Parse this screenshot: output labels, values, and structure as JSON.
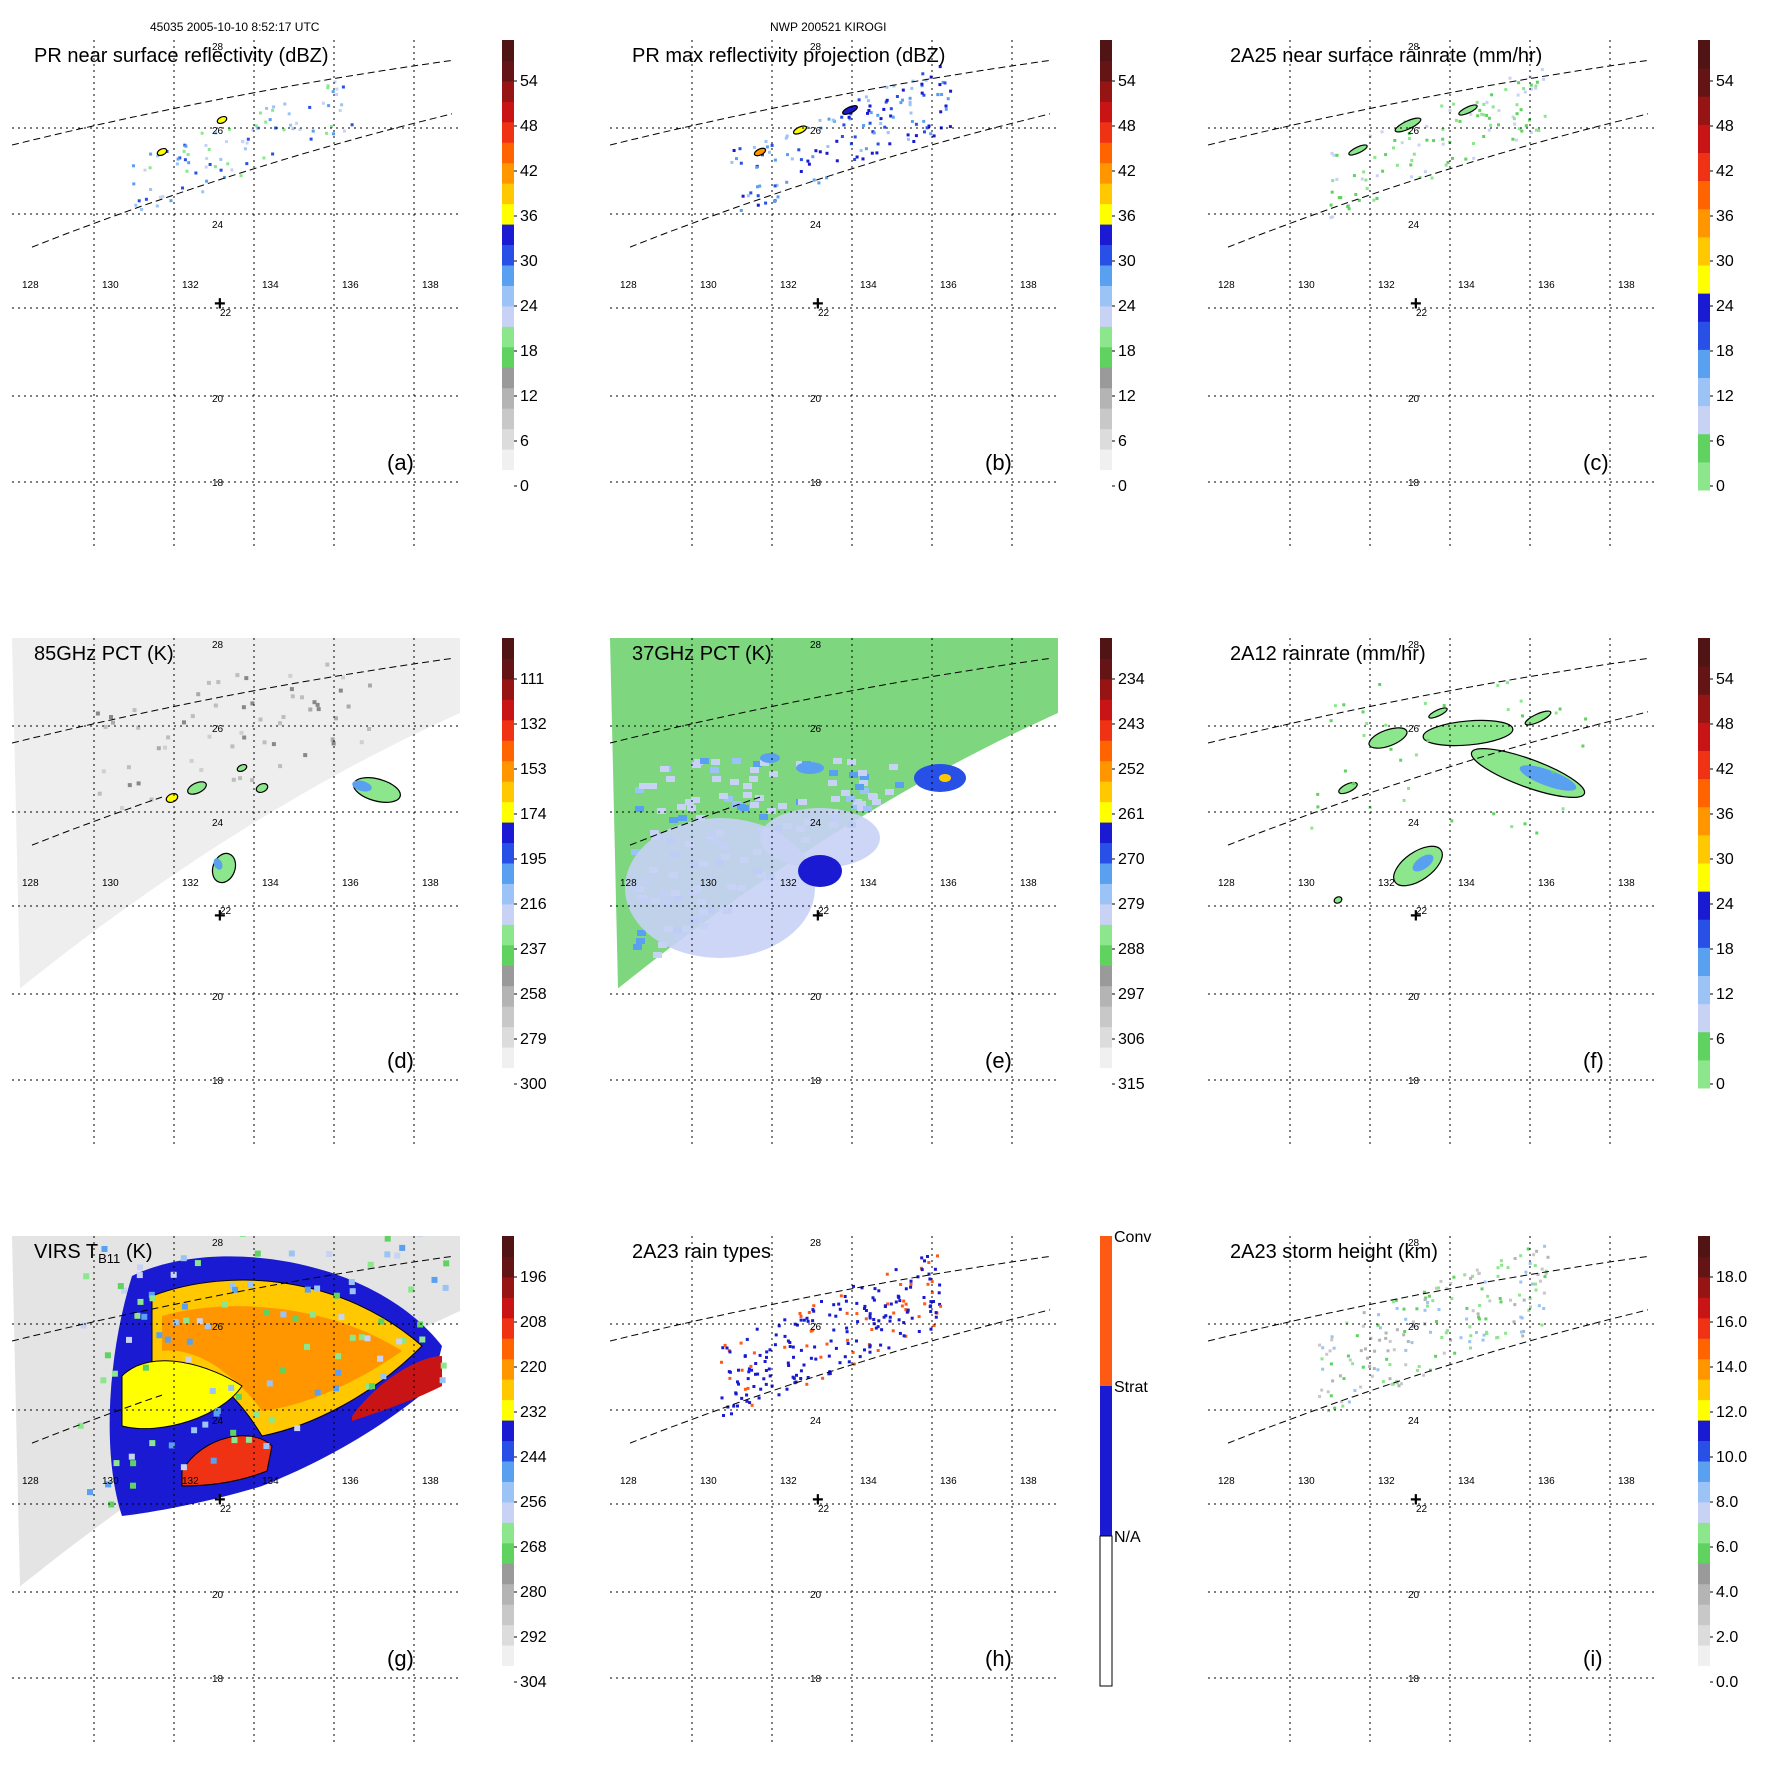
{
  "header": {
    "left": "45035 2005-10-10 8:52:17 UTC",
    "center": "NWP 200521 KIROGI"
  },
  "map": {
    "lon_ticks": [
      "128",
      "130",
      "132",
      "134",
      "136",
      "138"
    ],
    "lat_ticks": [
      "28",
      "26",
      "24",
      "22",
      "20",
      "18"
    ],
    "storm_center_marker": "+"
  },
  "panels": [
    {
      "id": "a",
      "label": "(a)",
      "title": "PR near surface reflectivity (dBZ)",
      "colorbar": {
        "ticks": [
          "54",
          "48",
          "42",
          "36",
          "30",
          "24",
          "18",
          "12",
          "6",
          "0"
        ],
        "colors": [
          "#ffffff",
          "#f0f0f0",
          "#dcdcdc",
          "#c8c8c8",
          "#b4b4b4",
          "#9a9a9a",
          "#5fd25f",
          "#8ce68c",
          "#c8d2f5",
          "#9bc3f5",
          "#5aa0f0",
          "#2850e6",
          "#1a1ad2",
          "#ffff00",
          "#ffc800",
          "#ff9600",
          "#ff6400",
          "#f03214",
          "#c81414",
          "#961414",
          "#641414",
          "#501414"
        ]
      },
      "swath": "pr",
      "field": "pr_sparse",
      "contours": true
    },
    {
      "id": "b",
      "label": "(b)",
      "title": "PR max reflectivity projection (dBZ)",
      "colorbar": {
        "ticks": [
          "54",
          "48",
          "42",
          "36",
          "30",
          "24",
          "18",
          "12",
          "6",
          "0"
        ],
        "colors": [
          "#ffffff",
          "#f0f0f0",
          "#dcdcdc",
          "#c8c8c8",
          "#b4b4b4",
          "#9a9a9a",
          "#5fd25f",
          "#8ce68c",
          "#c8d2f5",
          "#9bc3f5",
          "#5aa0f0",
          "#2850e6",
          "#1a1ad2",
          "#ffff00",
          "#ffc800",
          "#ff9600",
          "#ff6400",
          "#f03214",
          "#c81414",
          "#961414",
          "#641414",
          "#501414"
        ]
      },
      "swath": "pr",
      "field": "pr_blue",
      "contours": true
    },
    {
      "id": "c",
      "label": "(c)",
      "title": "2A25 near surface rainrate (mm/hr)",
      "colorbar": {
        "ticks": [
          "54",
          "48",
          "42",
          "36",
          "30",
          "24",
          "18",
          "12",
          "6",
          "0"
        ],
        "colors": [
          "#8ce68c",
          "#5fd25f",
          "#c8d2f5",
          "#9bc3f5",
          "#5aa0f0",
          "#2850e6",
          "#1a1ad2",
          "#ffff00",
          "#ffc800",
          "#ff9600",
          "#ff6400",
          "#f03214",
          "#c81414",
          "#961414",
          "#641414",
          "#501414"
        ]
      },
      "swath": "pr",
      "field": "pr_green",
      "contours": true
    },
    {
      "id": "d",
      "label": "(d)",
      "title": "85GHz PCT (K)",
      "colorbar": {
        "ticks": [
          "111",
          "132",
          "153",
          "174",
          "195",
          "216",
          "237",
          "258",
          "279",
          "300"
        ],
        "colors": [
          "#ffffff",
          "#f0f0f0",
          "#dcdcdc",
          "#c8c8c8",
          "#b4b4b4",
          "#9a9a9a",
          "#5fd25f",
          "#8ce68c",
          "#c8d2f5",
          "#9bc3f5",
          "#5aa0f0",
          "#2850e6",
          "#1a1ad2",
          "#ffff00",
          "#ffc800",
          "#ff9600",
          "#ff6400",
          "#f03214",
          "#c81414",
          "#961414",
          "#641414",
          "#501414"
        ]
      },
      "swath": "tmi",
      "fill": "#eeeeee",
      "field": "tmi85",
      "contours": true
    },
    {
      "id": "e",
      "label": "(e)",
      "title": "37GHz PCT (K)",
      "colorbar": {
        "ticks": [
          "234",
          "243",
          "252",
          "261",
          "270",
          "279",
          "288",
          "297",
          "306",
          "315"
        ],
        "colors": [
          "#ffffff",
          "#f0f0f0",
          "#dcdcdc",
          "#c8c8c8",
          "#b4b4b4",
          "#9a9a9a",
          "#5fd25f",
          "#8ce68c",
          "#c8d2f5",
          "#9bc3f5",
          "#5aa0f0",
          "#2850e6",
          "#1a1ad2",
          "#ffff00",
          "#ffc800",
          "#ff9600",
          "#ff6400",
          "#f03214",
          "#c81414",
          "#961414",
          "#641414",
          "#501414"
        ]
      },
      "swath": "tmi",
      "fill": "#7ed67e",
      "field": "tmi37",
      "contours": false
    },
    {
      "id": "f",
      "label": "(f)",
      "title": "2A12 rainrate (mm/hr)",
      "colorbar": {
        "ticks": [
          "54",
          "48",
          "42",
          "36",
          "30",
          "24",
          "18",
          "12",
          "6",
          "0"
        ],
        "colors": [
          "#8ce68c",
          "#5fd25f",
          "#c8d2f5",
          "#9bc3f5",
          "#5aa0f0",
          "#2850e6",
          "#1a1ad2",
          "#ffff00",
          "#ffc800",
          "#ff9600",
          "#ff6400",
          "#f03214",
          "#c81414",
          "#961414",
          "#641414",
          "#501414"
        ]
      },
      "swath": "none",
      "field": "tmirain",
      "contours": true
    },
    {
      "id": "g",
      "label": "(g)",
      "title": "VIRS T",
      "title_sub": "B11",
      "title_tail": " (K)",
      "colorbar": {
        "ticks": [
          "196",
          "208",
          "220",
          "232",
          "244",
          "256",
          "268",
          "280",
          "292",
          "304"
        ],
        "colors": [
          "#ffffff",
          "#f0f0f0",
          "#dcdcdc",
          "#c8c8c8",
          "#b4b4b4",
          "#9a9a9a",
          "#5fd25f",
          "#8ce68c",
          "#c8d2f5",
          "#9bc3f5",
          "#5aa0f0",
          "#2850e6",
          "#1a1ad2",
          "#ffff00",
          "#ffc800",
          "#ff9600",
          "#ff6400",
          "#f03214",
          "#c81414",
          "#961414",
          "#641414",
          "#501414"
        ]
      },
      "swath": "tmi",
      "fill": "#e4e4e4",
      "field": "virs",
      "contours": true
    },
    {
      "id": "h",
      "label": "(h)",
      "title": "2A23 rain types",
      "colorbar": {
        "categorical": true,
        "labels": [
          "Conv",
          "Strat",
          "N/A"
        ],
        "colors": [
          "#ff5a14",
          "#1a1ad2",
          "#ffffff"
        ]
      },
      "swath": "pr",
      "field": "types",
      "contours": false
    },
    {
      "id": "i",
      "label": "(i)",
      "title": "2A23 storm height (km)",
      "colorbar": {
        "ticks": [
          "18.0",
          "16.0",
          "14.0",
          "12.0",
          "10.0",
          "8.0",
          "6.0",
          "4.0",
          "2.0",
          "0.0"
        ],
        "colors": [
          "#ffffff",
          "#f0f0f0",
          "#dcdcdc",
          "#c8c8c8",
          "#b4b4b4",
          "#9a9a9a",
          "#5fd25f",
          "#8ce68c",
          "#c8d2f5",
          "#9bc3f5",
          "#5aa0f0",
          "#2850e6",
          "#1a1ad2",
          "#ffff00",
          "#ffc800",
          "#ff9600",
          "#ff6400",
          "#f03214",
          "#c81414",
          "#961414",
          "#641414",
          "#501414"
        ]
      },
      "swath": "pr",
      "field": "height",
      "contours": false
    }
  ]
}
